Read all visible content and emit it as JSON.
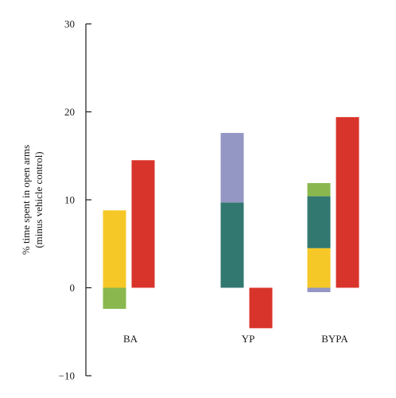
{
  "chart_data": {
    "type": "bar",
    "stacked": true,
    "title": "",
    "xlabel": "",
    "ylabel_line1": "% time spent in open arms",
    "ylabel_line2": "(minus vehicle control)",
    "ylim": [
      -10,
      30
    ],
    "yticks": [
      -10,
      0,
      10,
      20,
      30
    ],
    "yticks_text": [
      "−10",
      "0",
      "10",
      "20",
      "30"
    ],
    "categories": [
      "BA",
      "YP",
      "BYPA"
    ],
    "grid": false,
    "legend": "none",
    "bars": [
      {
        "category": "BA",
        "position": "left",
        "segments": [
          {
            "from": 0,
            "to": 8.8,
            "color": "#f5c827"
          },
          {
            "from": -2.4,
            "to": 0,
            "color": "#8ab84e"
          }
        ]
      },
      {
        "category": "BA",
        "position": "right",
        "segments": [
          {
            "from": 0,
            "to": 14.5,
            "color": "#d9342b"
          }
        ]
      },
      {
        "category": "YP",
        "position": "left",
        "segments": [
          {
            "from": 0,
            "to": 9.7,
            "color": "#327870"
          },
          {
            "from": 9.7,
            "to": 17.6,
            "color": "#9497c4"
          }
        ]
      },
      {
        "category": "YP",
        "position": "right",
        "segments": [
          {
            "from": -4.6,
            "to": 0,
            "color": "#d9342b"
          }
        ]
      },
      {
        "category": "BYPA",
        "position": "left",
        "segments": [
          {
            "from": -0.5,
            "to": 0,
            "color": "#9497c4"
          },
          {
            "from": 0,
            "to": 4.5,
            "color": "#f5c827"
          },
          {
            "from": 4.5,
            "to": 10.4,
            "color": "#327870"
          },
          {
            "from": 10.4,
            "to": 11.9,
            "color": "#8ab84e"
          }
        ]
      },
      {
        "category": "BYPA",
        "position": "right",
        "segments": [
          {
            "from": 0,
            "to": 19.4,
            "color": "#d9342b"
          }
        ]
      }
    ]
  }
}
